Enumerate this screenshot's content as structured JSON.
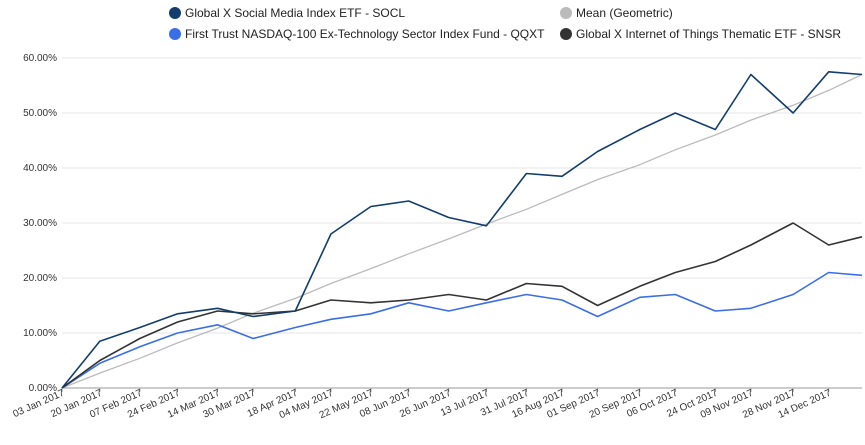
{
  "chart_data": {
    "type": "line",
    "title": "",
    "xlabel": "",
    "ylabel": "",
    "ylim": [
      0,
      62
    ],
    "y_ticks": [
      "0.00%",
      "10.00%",
      "20.00%",
      "30.00%",
      "40.00%",
      "50.00%",
      "60.00%"
    ],
    "y_tick_values": [
      0,
      10,
      20,
      30,
      40,
      50,
      60
    ],
    "x_ticks": [
      "03 Jan 2017",
      "20 Jan 2017",
      "07 Feb 2017",
      "24 Feb 2017",
      "14 Mar 2017",
      "30 Mar 2017",
      "18 Apr 2017",
      "04 May 2017",
      "22 May 2017",
      "08 Jun 2017",
      "26 Jun 2017",
      "13 Jul 2017",
      "31 Jul 2017",
      "16 Aug 2017",
      "01 Sep 2017",
      "20 Sep 2017",
      "06 Oct 2017",
      "24 Oct 2017",
      "09 Nov 2017",
      "28 Nov 2017",
      "14 Dec 2017"
    ],
    "grid": "horizontal",
    "legend_position": "top",
    "x_dates": [
      "2017-01-03",
      "2017-01-20",
      "2017-02-07",
      "2017-02-24",
      "2017-03-14",
      "2017-03-30",
      "2017-04-18",
      "2017-05-04",
      "2017-05-22",
      "2017-06-08",
      "2017-06-26",
      "2017-07-13",
      "2017-07-31",
      "2017-08-16",
      "2017-09-01",
      "2017-09-20",
      "2017-10-06",
      "2017-10-24",
      "2017-11-09",
      "2017-11-28",
      "2017-12-14",
      "2017-12-29"
    ],
    "series": [
      {
        "name": "Global X Social Media Index ETF - SOCL",
        "color": "#123d6e",
        "values": [
          0,
          8.5,
          11,
          13.5,
          14.5,
          13,
          14,
          28,
          33,
          34,
          31,
          29.5,
          39,
          38.5,
          43,
          47,
          50,
          47,
          57,
          50,
          57.5,
          57
        ]
      },
      {
        "name": "Mean (Geometric)",
        "color": "#bbbbbb",
        "values": [
          0,
          2.7,
          5.4,
          8.2,
          10.9,
          13.6,
          16.3,
          19,
          21.7,
          24.4,
          27.1,
          29.8,
          32.5,
          35.2,
          37.9,
          40.6,
          43.3,
          46,
          48.7,
          51.4,
          54.1,
          57
        ]
      },
      {
        "name": "First Trust NASDAQ-100 Ex-Technology Sector Index Fund - QQXT",
        "color": "#3a6ee8",
        "values": [
          0,
          4.5,
          7.5,
          10,
          11.5,
          9,
          11,
          12.5,
          13.5,
          15.5,
          14,
          15.5,
          17,
          16,
          13,
          16.5,
          17,
          14,
          14.5,
          17,
          21,
          20.5
        ]
      },
      {
        "name": "Global X Internet of Things Thematic ETF - SNSR",
        "color": "#333333",
        "values": [
          0,
          5,
          9,
          12,
          14,
          13.5,
          14,
          16,
          15.5,
          16,
          17,
          16,
          19,
          18.5,
          15,
          18.5,
          21,
          23,
          26,
          30,
          26,
          27.5
        ]
      }
    ]
  }
}
